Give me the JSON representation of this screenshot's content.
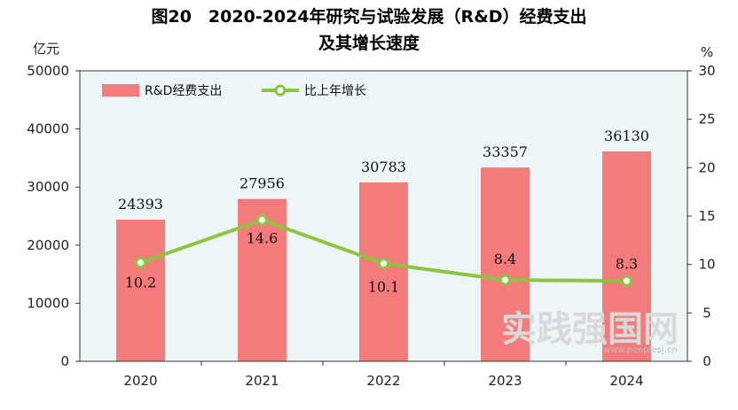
{
  "title": {
    "line1": "图20　2020-2024年研究与试验发展（R&D）经费支出",
    "line2": "及其增长速度"
  },
  "chart_data": {
    "type": "bar",
    "categories": [
      "2020",
      "2021",
      "2022",
      "2023",
      "2024"
    ],
    "series": [
      {
        "name": "R&D经费支出",
        "type": "bar",
        "axis": "left",
        "values": [
          24393,
          27956,
          30783,
          33357,
          36130
        ]
      },
      {
        "name": "比上年增长",
        "type": "line",
        "axis": "right",
        "values": [
          10.2,
          14.6,
          10.1,
          8.4,
          8.3
        ]
      }
    ],
    "left_axis": {
      "unit": "亿元",
      "ylim": [
        0,
        50000
      ],
      "ticks": [
        "0",
        "10000",
        "20000",
        "30000",
        "40000",
        "50000"
      ]
    },
    "right_axis": {
      "unit": "%",
      "ylim": [
        0,
        30
      ],
      "ticks": [
        "0",
        "5",
        "10",
        "15",
        "20",
        "25",
        "30"
      ]
    },
    "bar_labels": [
      "24393",
      "27956",
      "30783",
      "33357",
      "36130"
    ],
    "line_labels": [
      "10.2",
      "14.6",
      "10.1",
      "8.4",
      "8.3"
    ],
    "legend": {
      "position": "top-left"
    },
    "colors": {
      "bar": "#f47b7b",
      "line": "#8cc63f",
      "plot_bg": "#eef5f7"
    }
  },
  "watermark": {
    "main": "实践强国网",
    "url": "www.peoplesj.cn"
  }
}
